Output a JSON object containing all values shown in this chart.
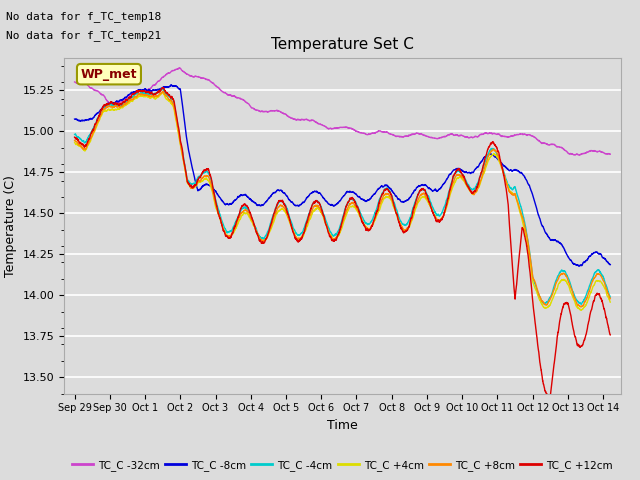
{
  "title": "Temperature Set C",
  "xlabel": "Time",
  "ylabel": "Temperature (C)",
  "ylim": [
    13.4,
    15.45
  ],
  "xlim": [
    -0.3,
    15.5
  ],
  "x_tick_labels": [
    "Sep 29",
    "Sep 30",
    "Oct 1",
    "Oct 2",
    "Oct 3",
    "Oct 4",
    "Oct 5",
    "Oct 6",
    "Oct 7",
    "Oct 8",
    "Oct 9",
    "Oct 10",
    "Oct 11",
    "Oct 12",
    "Oct 13",
    "Oct 14"
  ],
  "x_tick_positions": [
    0,
    1,
    2,
    3,
    4,
    5,
    6,
    7,
    8,
    9,
    10,
    11,
    12,
    13,
    14,
    15
  ],
  "bg_color": "#dcdcdc",
  "no_data_text1": "No data for f_TC_temp18",
  "no_data_text2": "No data for f_TC_temp21",
  "wp_met_label": "WP_met",
  "series_colors": {
    "TC_C -32cm": "#cc44cc",
    "TC_C -8cm": "#0000dd",
    "TC_C -4cm": "#00cccc",
    "TC_C +4cm": "#dddd00",
    "TC_C +8cm": "#ff8800",
    "TC_C +12cm": "#dd0000"
  },
  "legend_entries": [
    "TC_C -32cm",
    "TC_C -8cm",
    "TC_C -4cm",
    "TC_C +4cm",
    "TC_C +8cm",
    "TC_C +12cm"
  ],
  "legend_colors": [
    "#cc44cc",
    "#0000dd",
    "#00cccc",
    "#dddd00",
    "#ff8800",
    "#dd0000"
  ]
}
